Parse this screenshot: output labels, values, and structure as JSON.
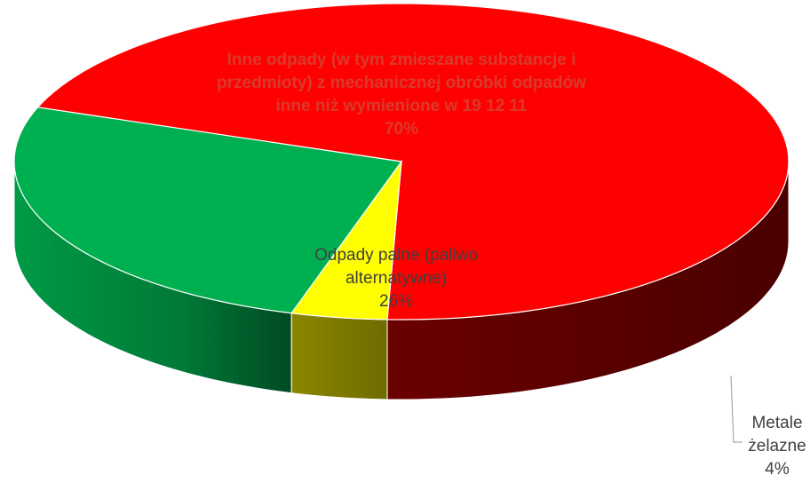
{
  "chart_data": {
    "type": "pie",
    "style": "3d",
    "title": "",
    "slices": [
      {
        "label_lines": [
          "Inne odpady (w tym zmieszane substancje i",
          "przedmioty) z mechanicznej obróbki odpadów",
          "inne niż wymienione w 19 12 11"
        ],
        "value": 70,
        "value_label": "70%",
        "color": "#ff0000",
        "side_color": "#d40000",
        "label_color": "#d93a2b"
      },
      {
        "label_lines": [
          "Metale",
          "żelazne"
        ],
        "value": 4,
        "value_label": "4%",
        "color": "#ffff00",
        "side_color": "#807d00",
        "label_color": "#404040"
      },
      {
        "label_lines": [
          "Odpady palne (paliwo",
          "alternatywne)"
        ],
        "value": 26,
        "value_label": "26%",
        "color": "#00b050",
        "side_color": "#00873c",
        "label_color": "#404040"
      }
    ]
  }
}
